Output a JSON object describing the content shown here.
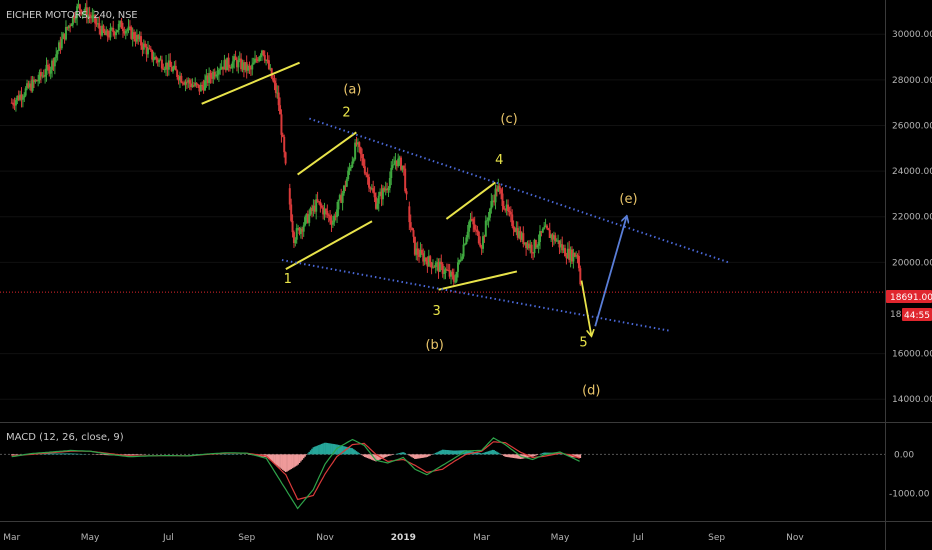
{
  "header": {
    "symbol_title": "EICHER MOTORS, 240, NSE"
  },
  "macd_panel": {
    "title": "MACD (12, 26, close, 9)"
  },
  "price_tags": {
    "last_price": "18691.00",
    "countdown": "44:55",
    "partial_label": "18"
  },
  "colors": {
    "background": "#000000",
    "up_candle": "#3fa73f",
    "down_candle": "#d93a3a",
    "trendline_yellow": "#e8e34a",
    "channel_blue": "#4a68d8",
    "wave_label": "#e8e34a",
    "wave_label_alt": "#e8c46a",
    "projection_blue": "#5a7ed8",
    "macd_line": "#2ea34a",
    "signal_line": "#d93a3a",
    "hist_up": "#26a69a",
    "hist_down": "#ef9a9a"
  },
  "chart_data": {
    "type": "candlestick",
    "title": "EICHER MOTORS, 240, NSE",
    "x_axis": {
      "ticks": [
        "Mar",
        "May",
        "Jul",
        "Sep",
        "Nov",
        "2019",
        "Mar",
        "May",
        "Jul",
        "Sep",
        "Nov"
      ],
      "tick_months_index": [
        0,
        2,
        4,
        6,
        8,
        10,
        12,
        14,
        16,
        18,
        20
      ],
      "range_months": [
        -0.3,
        22.3
      ]
    },
    "y_axis": {
      "ticks": [
        "30000.00",
        "28000.00",
        "26000.00",
        "24000.00",
        "22000.00",
        "20000.00",
        "16000.00",
        "14000.00"
      ],
      "tick_values": [
        30000,
        28000,
        26000,
        24000,
        22000,
        20000,
        16000,
        14000
      ],
      "range": [
        13000,
        31500
      ]
    },
    "last_price": 18691,
    "price_path": [
      [
        0,
        27000
      ],
      [
        0.6,
        27900
      ],
      [
        1.0,
        28600
      ],
      [
        1.4,
        30200
      ],
      [
        1.7,
        31200
      ],
      [
        2.0,
        30800
      ],
      [
        2.4,
        29900
      ],
      [
        2.8,
        30400
      ],
      [
        3.2,
        29800
      ],
      [
        3.6,
        29000
      ],
      [
        4.0,
        28600
      ],
      [
        4.4,
        28000
      ],
      [
        4.8,
        27600
      ],
      [
        5.3,
        28600
      ],
      [
        5.7,
        28800
      ],
      [
        6.1,
        28400
      ],
      [
        6.4,
        29400
      ],
      [
        6.8,
        27200
      ],
      [
        7.0,
        24000
      ],
      [
        7.2,
        21100
      ],
      [
        7.5,
        21800
      ],
      [
        7.8,
        22600
      ],
      [
        8.2,
        21800
      ],
      [
        8.5,
        23300
      ],
      [
        8.8,
        25200
      ],
      [
        9.0,
        24200
      ],
      [
        9.3,
        22600
      ],
      [
        9.6,
        23400
      ],
      [
        9.8,
        24500
      ],
      [
        10.0,
        24200
      ],
      [
        10.1,
        22400
      ],
      [
        10.3,
        20500
      ],
      [
        10.6,
        20100
      ],
      [
        10.9,
        19800
      ],
      [
        11.1,
        19600
      ],
      [
        11.3,
        19200
      ],
      [
        11.5,
        20500
      ],
      [
        11.7,
        21900
      ],
      [
        12.0,
        20800
      ],
      [
        12.2,
        22300
      ],
      [
        12.4,
        23300
      ],
      [
        12.7,
        22000
      ],
      [
        13.0,
        21100
      ],
      [
        13.3,
        20600
      ],
      [
        13.6,
        21400
      ],
      [
        13.9,
        21000
      ],
      [
        14.1,
        20500
      ],
      [
        14.3,
        20300
      ],
      [
        14.45,
        20400
      ],
      [
        14.5,
        19500
      ],
      [
        14.55,
        18691
      ]
    ],
    "macd": {
      "macd_line": [
        [
          0,
          -60
        ],
        [
          0.5,
          20
        ],
        [
          1.0,
          60
        ],
        [
          1.5,
          100
        ],
        [
          2.0,
          80
        ],
        [
          2.5,
          0
        ],
        [
          3.0,
          -60
        ],
        [
          3.5,
          -40
        ],
        [
          4.0,
          -30
        ],
        [
          4.5,
          -40
        ],
        [
          5.0,
          10
        ],
        [
          5.5,
          40
        ],
        [
          6.0,
          30
        ],
        [
          6.5,
          -100
        ],
        [
          7.0,
          -900
        ],
        [
          7.3,
          -1380
        ],
        [
          7.7,
          -900
        ],
        [
          8.0,
          -250
        ],
        [
          8.3,
          150
        ],
        [
          8.7,
          380
        ],
        [
          9.0,
          230
        ],
        [
          9.3,
          -150
        ],
        [
          9.6,
          -220
        ],
        [
          10.0,
          -80
        ],
        [
          10.3,
          -380
        ],
        [
          10.6,
          -520
        ],
        [
          11.0,
          -280
        ],
        [
          11.3,
          -100
        ],
        [
          11.6,
          90
        ],
        [
          12.0,
          100
        ],
        [
          12.3,
          420
        ],
        [
          12.6,
          250
        ],
        [
          13.0,
          -50
        ],
        [
          13.3,
          -130
        ],
        [
          13.6,
          -10
        ],
        [
          14.0,
          60
        ],
        [
          14.3,
          -80
        ],
        [
          14.55,
          -200
        ]
      ],
      "signal_line": [
        [
          0,
          -40
        ],
        [
          0.5,
          0
        ],
        [
          1.0,
          40
        ],
        [
          1.5,
          80
        ],
        [
          2.0,
          80
        ],
        [
          2.5,
          20
        ],
        [
          3.0,
          -40
        ],
        [
          3.5,
          -40
        ],
        [
          4.0,
          -30
        ],
        [
          4.5,
          -40
        ],
        [
          5.0,
          0
        ],
        [
          5.5,
          30
        ],
        [
          6.0,
          30
        ],
        [
          6.5,
          -40
        ],
        [
          7.0,
          -520
        ],
        [
          7.3,
          -1150
        ],
        [
          7.7,
          -1050
        ],
        [
          8.0,
          -500
        ],
        [
          8.3,
          -60
        ],
        [
          8.7,
          250
        ],
        [
          9.0,
          280
        ],
        [
          9.3,
          0
        ],
        [
          9.6,
          -180
        ],
        [
          10.0,
          -130
        ],
        [
          10.3,
          -280
        ],
        [
          10.6,
          -460
        ],
        [
          11.0,
          -380
        ],
        [
          11.3,
          -180
        ],
        [
          11.6,
          0
        ],
        [
          12.0,
          80
        ],
        [
          12.3,
          320
        ],
        [
          12.6,
          300
        ],
        [
          13.0,
          50
        ],
        [
          13.3,
          -80
        ],
        [
          13.6,
          -50
        ],
        [
          14.0,
          30
        ],
        [
          14.3,
          -20
        ],
        [
          14.55,
          -120
        ]
      ],
      "y_ticks": [
        "0.00",
        "-1000.00"
      ],
      "y_tick_values": [
        0,
        -1000
      ],
      "range": [
        -1700,
        800
      ]
    },
    "annotations": {
      "wave_labels": [
        {
          "text": "1",
          "x": 7.05,
          "y": 19100
        },
        {
          "text": "2",
          "x": 8.55,
          "y": 26400
        },
        {
          "text": "3",
          "x": 10.85,
          "y": 17700
        },
        {
          "text": "4",
          "x": 12.45,
          "y": 24300
        },
        {
          "text": "5",
          "x": 14.6,
          "y": 16300
        },
        {
          "text": "(a)",
          "x": 8.7,
          "y": 27400
        },
        {
          "text": "(b)",
          "x": 10.8,
          "y": 16200
        },
        {
          "text": "(c)",
          "x": 12.7,
          "y": 26100
        },
        {
          "text": "(d)",
          "x": 14.8,
          "y": 14200
        },
        {
          "text": "(e)",
          "x": 15.75,
          "y": 22600
        }
      ],
      "yellow_lines": [
        [
          [
            4.85,
            26950
          ],
          [
            7.35,
            28750
          ]
        ],
        [
          [
            7.3,
            23850
          ],
          [
            8.8,
            25700
          ]
        ],
        [
          [
            7.0,
            19700
          ],
          [
            9.2,
            21800
          ]
        ],
        [
          [
            11.1,
            21900
          ],
          [
            12.35,
            23500
          ]
        ],
        [
          [
            10.9,
            18800
          ],
          [
            12.9,
            19600
          ]
        ]
      ],
      "blue_dotted_lines": [
        [
          [
            7.6,
            26300
          ],
          [
            18.3,
            20000
          ]
        ],
        [
          [
            6.9,
            20100
          ],
          [
            16.8,
            17000
          ]
        ]
      ],
      "arrows": [
        {
          "from": [
            14.55,
            19200
          ],
          "to": [
            14.8,
            16800
          ],
          "color": "yellow"
        },
        {
          "from": [
            14.9,
            17200
          ],
          "to": [
            15.7,
            22000
          ],
          "color": "blue"
        }
      ]
    }
  }
}
